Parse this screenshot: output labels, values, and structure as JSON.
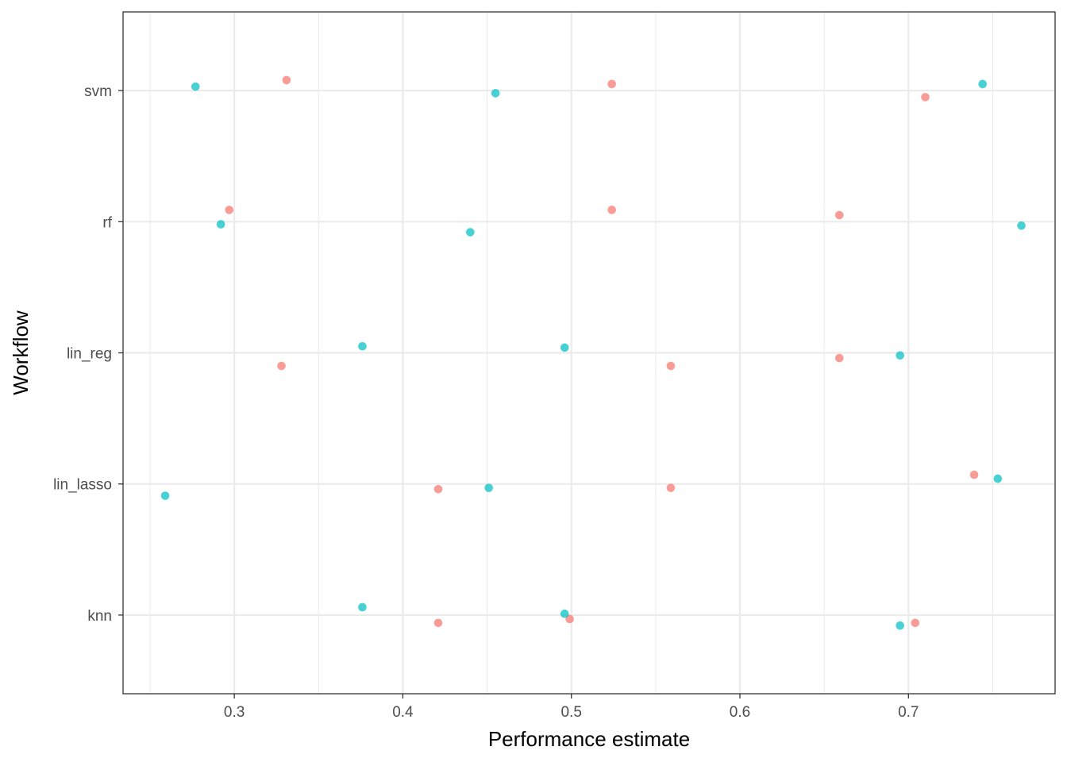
{
  "chart_data": {
    "type": "scatter",
    "title": "",
    "xlabel": "Performance estimate",
    "ylabel": "Workflow",
    "xlim": [
      0.234,
      0.787
    ],
    "x_ticks": [
      "0.3",
      "0.4",
      "0.5",
      "0.6",
      "0.7"
    ],
    "x_tick_values": [
      0.3,
      0.4,
      0.5,
      0.6,
      0.7
    ],
    "x_minor_ticks": [
      0.25,
      0.35,
      0.45,
      0.55,
      0.65,
      0.75
    ],
    "categories": [
      "knn",
      "lin_lasso",
      "lin_reg",
      "rf",
      "svm"
    ],
    "grid": true,
    "legend": "none",
    "series": [
      {
        "color": "#F8766D",
        "points": [
          {
            "category": "svm",
            "x": 0.331,
            "jitter": 0.08
          },
          {
            "category": "svm",
            "x": 0.524,
            "jitter": 0.05
          },
          {
            "category": "svm",
            "x": 0.71,
            "jitter": -0.05
          },
          {
            "category": "rf",
            "x": 0.297,
            "jitter": 0.09
          },
          {
            "category": "rf",
            "x": 0.524,
            "jitter": 0.09
          },
          {
            "category": "rf",
            "x": 0.659,
            "jitter": 0.05
          },
          {
            "category": "lin_reg",
            "x": 0.328,
            "jitter": -0.1
          },
          {
            "category": "lin_reg",
            "x": 0.559,
            "jitter": -0.1
          },
          {
            "category": "lin_reg",
            "x": 0.659,
            "jitter": -0.04
          },
          {
            "category": "lin_lasso",
            "x": 0.421,
            "jitter": -0.04
          },
          {
            "category": "lin_lasso",
            "x": 0.559,
            "jitter": -0.03
          },
          {
            "category": "lin_lasso",
            "x": 0.739,
            "jitter": 0.07
          },
          {
            "category": "knn",
            "x": 0.421,
            "jitter": -0.06
          },
          {
            "category": "knn",
            "x": 0.499,
            "jitter": -0.03
          },
          {
            "category": "knn",
            "x": 0.704,
            "jitter": -0.06
          }
        ]
      },
      {
        "color": "#00BFC4",
        "points": [
          {
            "category": "svm",
            "x": 0.277,
            "jitter": 0.03
          },
          {
            "category": "svm",
            "x": 0.455,
            "jitter": -0.02
          },
          {
            "category": "svm",
            "x": 0.744,
            "jitter": 0.05
          },
          {
            "category": "rf",
            "x": 0.292,
            "jitter": -0.02
          },
          {
            "category": "rf",
            "x": 0.44,
            "jitter": -0.08
          },
          {
            "category": "rf",
            "x": 0.767,
            "jitter": -0.03
          },
          {
            "category": "lin_reg",
            "x": 0.376,
            "jitter": 0.05
          },
          {
            "category": "lin_reg",
            "x": 0.496,
            "jitter": 0.04
          },
          {
            "category": "lin_reg",
            "x": 0.695,
            "jitter": -0.02
          },
          {
            "category": "lin_lasso",
            "x": 0.259,
            "jitter": -0.09
          },
          {
            "category": "lin_lasso",
            "x": 0.451,
            "jitter": -0.03
          },
          {
            "category": "lin_lasso",
            "x": 0.753,
            "jitter": 0.04
          },
          {
            "category": "knn",
            "x": 0.376,
            "jitter": 0.06
          },
          {
            "category": "knn",
            "x": 0.496,
            "jitter": 0.01
          },
          {
            "category": "knn",
            "x": 0.695,
            "jitter": -0.08
          }
        ]
      }
    ]
  }
}
